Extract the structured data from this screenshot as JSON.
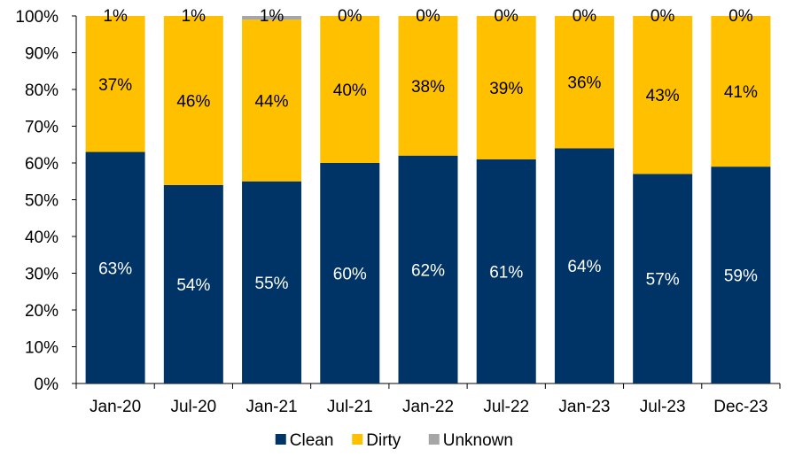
{
  "chart_data": {
    "type": "bar",
    "stacked": true,
    "percent": true,
    "categories": [
      "Jan-20",
      "Jul-20",
      "Jan-21",
      "Jul-21",
      "Jan-22",
      "Jul-22",
      "Jan-23",
      "Jul-23",
      "Dec-23"
    ],
    "series": [
      {
        "name": "Clean",
        "color": "#003366",
        "values": [
          63,
          54,
          55,
          60,
          62,
          61,
          64,
          57,
          59
        ],
        "labels": [
          "63%",
          "54%",
          "55%",
          "60%",
          "62%",
          "61%",
          "64%",
          "57%",
          "59%"
        ],
        "label_color": "#ffffff"
      },
      {
        "name": "Dirty",
        "color": "#ffc000",
        "values": [
          37,
          46,
          44,
          40,
          38,
          39,
          36,
          43,
          41
        ],
        "labels": [
          "37%",
          "46%",
          "44%",
          "40%",
          "38%",
          "39%",
          "36%",
          "43%",
          "41%"
        ],
        "label_color": "#000000"
      },
      {
        "name": "Unknown",
        "color": "#a6a6a6",
        "values": [
          1,
          1,
          1,
          0,
          0,
          0,
          0,
          0,
          0
        ],
        "labels": [
          "1%",
          "1%",
          "1%",
          "0%",
          "0%",
          "0%",
          "0%",
          "0%",
          "0%"
        ],
        "label_color": "#000000"
      }
    ],
    "ylim": [
      0,
      100
    ],
    "yticks": [
      "0%",
      "10%",
      "20%",
      "30%",
      "40%",
      "50%",
      "60%",
      "70%",
      "80%",
      "90%",
      "100%"
    ],
    "title": "",
    "xlabel": "",
    "ylabel": "",
    "grid": false,
    "legend_position": "bottom"
  }
}
